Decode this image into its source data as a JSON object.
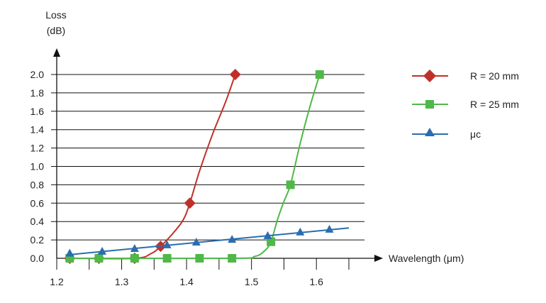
{
  "chart_data": {
    "type": "line",
    "ylabel_line1": "Loss",
    "ylabel_line2": "(dB)",
    "xlabel": "Wavelength (μm)",
    "xlim": [
      1.2,
      1.65
    ],
    "ylim": [
      0.0,
      2.0
    ],
    "x_ticks": [
      "1.2",
      "1.3",
      "1.4",
      "1.5",
      "1.6"
    ],
    "y_ticks": [
      "0.0",
      "0.2",
      "0.4",
      "0.6",
      "0.8",
      "1.0",
      "1.2",
      "1.4",
      "1.6",
      "1.8",
      "2.0"
    ],
    "series": [
      {
        "name": "R = 20 mm",
        "color": "#c0302a",
        "marker": "diamond",
        "marker_points": [
          [
            1.22,
            0.0
          ],
          [
            1.265,
            0.0
          ],
          [
            1.32,
            0.0
          ],
          [
            1.36,
            0.13
          ],
          [
            1.405,
            0.6
          ],
          [
            1.475,
            2.0
          ]
        ],
        "curve": [
          [
            1.22,
            0.0
          ],
          [
            1.32,
            0.0
          ],
          [
            1.345,
            0.05
          ],
          [
            1.36,
            0.13
          ],
          [
            1.38,
            0.28
          ],
          [
            1.395,
            0.42
          ],
          [
            1.405,
            0.6
          ],
          [
            1.42,
            0.95
          ],
          [
            1.44,
            1.35
          ],
          [
            1.46,
            1.7
          ],
          [
            1.475,
            2.0
          ]
        ]
      },
      {
        "name": "R = 25 mm",
        "color": "#4fb848",
        "marker": "square",
        "marker_points": [
          [
            1.22,
            0.0
          ],
          [
            1.265,
            0.0
          ],
          [
            1.32,
            0.0
          ],
          [
            1.37,
            0.0
          ],
          [
            1.42,
            0.0
          ],
          [
            1.47,
            0.0
          ],
          [
            1.53,
            0.18
          ],
          [
            1.56,
            0.8
          ],
          [
            1.605,
            2.0
          ]
        ],
        "curve": [
          [
            1.22,
            0.0
          ],
          [
            1.47,
            0.0
          ],
          [
            1.505,
            0.02
          ],
          [
            1.52,
            0.08
          ],
          [
            1.53,
            0.18
          ],
          [
            1.54,
            0.42
          ],
          [
            1.55,
            0.62
          ],
          [
            1.56,
            0.8
          ],
          [
            1.575,
            1.25
          ],
          [
            1.59,
            1.65
          ],
          [
            1.605,
            2.0
          ]
        ]
      },
      {
        "name": "μc",
        "color": "#2a6db0",
        "marker": "triangle",
        "marker_points": [
          [
            1.22,
            0.05
          ],
          [
            1.27,
            0.07
          ],
          [
            1.32,
            0.1
          ],
          [
            1.37,
            0.14
          ],
          [
            1.415,
            0.17
          ],
          [
            1.47,
            0.2
          ],
          [
            1.525,
            0.24
          ],
          [
            1.575,
            0.28
          ],
          [
            1.62,
            0.31
          ]
        ],
        "curve": [
          [
            1.22,
            0.04
          ],
          [
            1.65,
            0.33
          ]
        ]
      }
    ]
  }
}
